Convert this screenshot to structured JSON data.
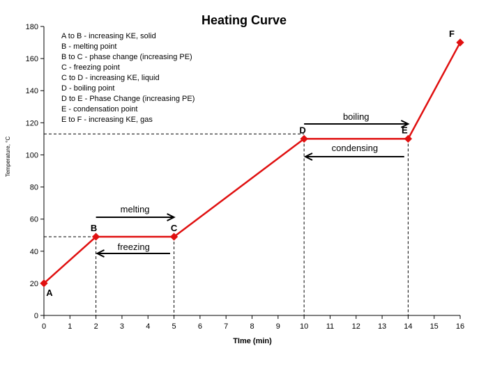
{
  "chart_data": {
    "type": "line",
    "title": "Heating Curve",
    "xlabel": "TIme (min)",
    "ylabel": "Temperature, °C",
    "xlim": [
      0,
      16
    ],
    "ylim": [
      0,
      180
    ],
    "x_ticks": [
      "0",
      "1",
      "2",
      "3",
      "4",
      "5",
      "6",
      "7",
      "8",
      "9",
      "10",
      "11",
      "12",
      "13",
      "14",
      "15",
      "16"
    ],
    "y_ticks": [
      "0",
      "20",
      "40",
      "60",
      "80",
      "100",
      "120",
      "140",
      "160",
      "180"
    ],
    "grid": false,
    "line_color": "#e01010",
    "points": [
      {
        "label": "A",
        "x": 0,
        "y": 20
      },
      {
        "label": "B",
        "x": 2,
        "y": 49
      },
      {
        "label": "C",
        "x": 5,
        "y": 49
      },
      {
        "label": "D",
        "x": 10,
        "y": 110
      },
      {
        "label": "E",
        "x": 14,
        "y": 110
      },
      {
        "label": "F",
        "x": 16,
        "y": 170
      }
    ],
    "legend_placement": "top-left",
    "legend_lines": [
      "A to B - increasing KE, solid",
      "B - melting point",
      "B to C - phase change (increasing PE)",
      "C - freezing point",
      "C to D - increasing KE, liquid",
      "D - boiling point",
      "D to E - Phase Change (increasing PE)",
      "E - condensation point",
      "E to F - increasing KE, gas"
    ],
    "annotations": {
      "melting": "melting",
      "freezing": "freezing",
      "boiling": "boiling",
      "condensing": "condensing"
    }
  }
}
